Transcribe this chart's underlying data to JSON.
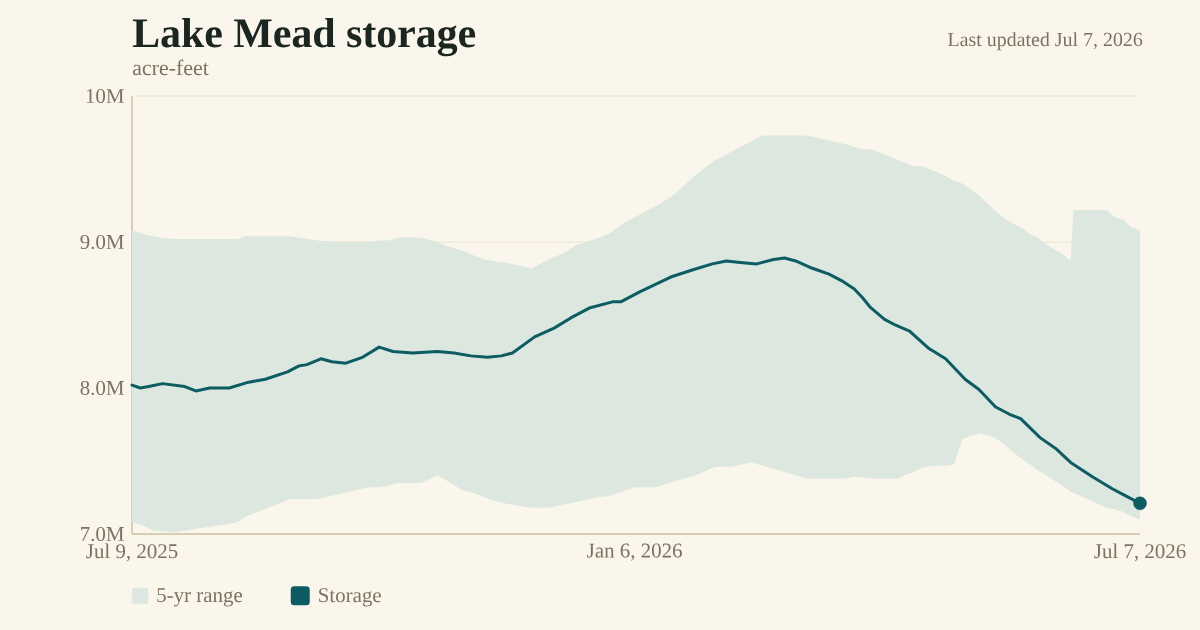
{
  "chart_data": {
    "type": "line",
    "title": "Lake Mead storage",
    "subtitle": "acre-feet",
    "annotations": [
      "Last updated Jul 7, 2026"
    ],
    "xlim": [
      "2025-07-09",
      "2026-07-07"
    ],
    "xticks": [
      {
        "value": "2025-07-09",
        "label": "Jul 9, 2025"
      },
      {
        "value": "2026-01-06",
        "label": "Jan 6, 2026"
      },
      {
        "value": "2026-07-07",
        "label": "Jul 7, 2026"
      }
    ],
    "ylim": [
      7000000,
      10000000
    ],
    "yticks": [
      {
        "value": 7000000,
        "label": "7.0M"
      },
      {
        "value": 8000000,
        "label": "8.0M"
      },
      {
        "value": 9000000,
        "label": "9.0M"
      },
      {
        "value": 10000000,
        "label": "10M"
      }
    ],
    "grid": "y",
    "legend": "bottom",
    "series": [
      {
        "name": "5-yr range",
        "type": "area",
        "color": "#dce7df",
        "x": [
          "2025-07-09",
          "2025-07-11",
          "2025-07-14",
          "2025-07-17",
          "2025-07-19",
          "2025-07-24",
          "2025-08-16",
          "2025-08-19",
          "2025-09-04",
          "2025-09-14",
          "2025-09-21",
          "2025-10-02",
          "2025-10-06",
          "2025-10-09",
          "2025-10-13",
          "2025-10-21",
          "2025-10-27",
          "2025-10-31",
          "2025-11-05",
          "2025-11-09",
          "2025-11-13",
          "2025-11-16",
          "2025-11-20",
          "2025-11-30",
          "2025-12-06",
          "2025-12-11",
          "2025-12-16",
          "2025-12-21",
          "2025-12-23",
          "2025-12-28",
          "2026-01-03",
          "2026-01-06",
          "2026-01-14",
          "2026-01-20",
          "2026-01-28",
          "2026-02-04",
          "2026-02-10",
          "2026-02-14",
          "2026-02-17",
          "2026-02-21",
          "2026-03-09",
          "2026-03-23",
          "2026-03-26",
          "2026-03-28",
          "2026-04-02",
          "2026-04-11",
          "2026-04-14",
          "2026-04-16",
          "2026-04-19",
          "2026-04-21",
          "2026-04-26",
          "2026-04-29",
          "2026-05-01",
          "2026-05-04",
          "2026-05-10",
          "2026-05-16",
          "2026-05-20",
          "2026-05-23",
          "2026-05-25",
          "2026-05-29",
          "2026-05-31",
          "2026-06-05",
          "2026-06-09",
          "2026-06-12",
          "2026-06-13",
          "2026-06-25",
          "2026-06-28",
          "2026-07-01",
          "2026-07-04",
          "2026-07-07"
        ],
        "values": [
          null,
          null,
          null,
          null,
          null,
          null,
          null,
          null,
          null,
          null,
          null,
          null,
          null,
          null,
          null,
          null,
          null,
          null,
          null,
          null,
          null,
          null,
          null,
          null,
          null,
          null,
          null,
          null,
          null,
          null,
          null,
          null,
          null,
          null,
          null,
          null,
          null,
          null,
          null,
          null,
          null,
          null,
          null,
          null,
          null,
          null,
          null,
          null,
          null,
          null,
          null,
          null,
          null,
          null,
          null,
          null,
          null,
          null,
          null,
          null,
          null,
          null,
          null,
          null,
          null,
          null,
          null,
          null,
          null,
          null
        ],
        "upper": [
          9080000,
          9070000,
          9050000,
          9040000,
          9030000,
          9020000,
          9020000,
          9040000,
          9040000,
          9010000,
          9000000,
          9000000,
          9010000,
          9010000,
          9030000,
          9030000,
          9000000,
          8970000,
          8940000,
          8910000,
          8880000,
          8870000,
          8860000,
          8820000,
          8880000,
          8920000,
          8980000,
          9010000,
          9020000,
          9060000,
          9140000,
          9170000,
          9250000,
          9320000,
          9460000,
          9560000,
          9620000,
          9660000,
          9690000,
          9730000,
          9730000,
          9670000,
          9650000,
          9640000,
          9630000,
          9560000,
          9540000,
          9520000,
          9520000,
          9510000,
          9470000,
          9440000,
          9420000,
          9400000,
          9320000,
          9210000,
          9150000,
          9120000,
          9100000,
          9050000,
          9030000,
          8960000,
          8920000,
          8870000,
          9220000,
          9220000,
          9170000,
          9150000,
          9100000,
          9080000
        ],
        "lower": [
          7080000,
          7070000,
          7050000,
          7020000,
          7020000,
          7010000,
          7080000,
          7120000,
          7240000,
          7240000,
          7270000,
          7320000,
          7320000,
          7330000,
          7350000,
          7350000,
          7400000,
          7360000,
          7300000,
          7280000,
          7250000,
          7230000,
          7210000,
          7180000,
          7180000,
          7200000,
          7220000,
          7240000,
          7250000,
          7260000,
          7300000,
          7320000,
          7320000,
          7360000,
          7400000,
          7460000,
          7460000,
          7480000,
          7490000,
          7470000,
          7380000,
          7380000,
          7390000,
          7390000,
          7380000,
          7380000,
          7410000,
          7420000,
          7450000,
          7460000,
          7470000,
          7470000,
          7480000,
          7650000,
          7690000,
          7660000,
          7600000,
          7550000,
          7520000,
          7470000,
          7440000,
          7380000,
          7330000,
          7290000,
          7280000,
          7180000,
          7170000,
          7150000,
          7120000,
          7100000
        ]
      },
      {
        "name": "Storage",
        "type": "line",
        "color": "#0d5c63",
        "x": [
          "2025-07-09",
          "2025-07-12",
          "2025-07-15",
          "2025-07-20",
          "2025-07-28",
          "2025-08-01",
          "2025-08-06",
          "2025-08-13",
          "2025-08-20",
          "2025-08-26",
          "2025-09-03",
          "2025-09-07",
          "2025-09-10",
          "2025-09-15",
          "2025-09-19",
          "2025-09-24",
          "2025-09-30",
          "2025-10-06",
          "2025-10-11",
          "2025-10-18",
          "2025-10-27",
          "2025-11-02",
          "2025-11-08",
          "2025-11-14",
          "2025-11-19",
          "2025-11-23",
          "2025-12-01",
          "2025-12-08",
          "2025-12-14",
          "2025-12-21",
          "2025-12-29",
          "2026-01-01",
          "2026-01-08",
          "2026-01-19",
          "2026-01-27",
          "2026-02-03",
          "2026-02-08",
          "2026-02-13",
          "2026-02-19",
          "2026-02-25",
          "2026-03-01",
          "2026-03-05",
          "2026-03-11",
          "2026-03-17",
          "2026-03-22",
          "2026-03-26",
          "2026-03-29",
          "2026-04-01",
          "2026-04-06",
          "2026-04-10",
          "2026-04-15",
          "2026-04-22",
          "2026-04-28",
          "2026-05-05",
          "2026-05-10",
          "2026-05-16",
          "2026-05-21",
          "2026-05-25",
          "2026-06-01",
          "2026-06-07",
          "2026-06-12",
          "2026-06-20",
          "2026-06-27",
          "2026-07-01",
          "2026-07-07"
        ],
        "values": [
          8020000,
          8000000,
          8010000,
          8030000,
          8010000,
          7980000,
          8000000,
          8000000,
          8040000,
          8060000,
          8110000,
          8150000,
          8160000,
          8200000,
          8180000,
          8170000,
          8210000,
          8280000,
          8250000,
          8240000,
          8250000,
          8240000,
          8220000,
          8210000,
          8220000,
          8240000,
          8350000,
          8410000,
          8480000,
          8550000,
          8590000,
          8590000,
          8660000,
          8760000,
          8810000,
          8850000,
          8870000,
          8860000,
          8850000,
          8880000,
          8890000,
          8870000,
          8820000,
          8780000,
          8730000,
          8680000,
          8620000,
          8550000,
          8470000,
          8430000,
          8390000,
          8270000,
          8200000,
          8060000,
          7990000,
          7870000,
          7820000,
          7790000,
          7660000,
          7580000,
          7490000,
          7390000,
          7310000,
          7270000,
          7210000
        ]
      },
      {
        "type": "scatter",
        "color": "#0d5c63",
        "marker": "circle",
        "x": [
          "2026-07-07"
        ],
        "values": [
          7210000
        ]
      }
    ]
  }
}
